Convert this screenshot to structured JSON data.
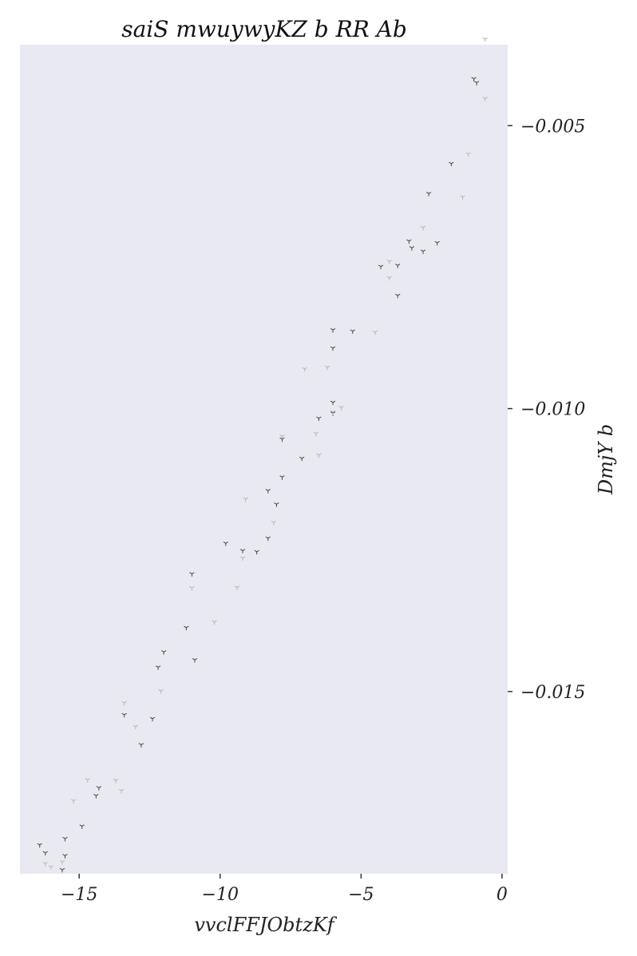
{
  "chart_data": {
    "type": "scatter",
    "title": "saiS mwuywyKZ b RR Ab",
    "xlabel": "vvclFFJObtzKf",
    "ylabel": "DmjY b",
    "xlim": [
      -17.1,
      0.2
    ],
    "ylim": [
      -0.01822,
      -0.00357
    ],
    "x_ticks": [
      -15,
      -10,
      -5,
      0
    ],
    "x_tick_labels": [
      "−15",
      "−10",
      "−5",
      "0"
    ],
    "y_ticks": [
      -0.005,
      -0.01,
      -0.015
    ],
    "y_tick_labels": [
      "−0.005",
      "−0.010",
      "−0.015"
    ],
    "y_axis_side": "right",
    "grid": false,
    "marker": "tri_down",
    "series": [
      {
        "color": "#444444",
        "points": [
          [
            -1.0,
            -0.00417
          ],
          [
            -0.9,
            -0.00424
          ],
          [
            -1.8,
            -0.00567
          ],
          [
            -2.6,
            -0.0062
          ],
          [
            -2.3,
            -0.00707
          ],
          [
            -2.8,
            -0.00722
          ],
          [
            -3.3,
            -0.00704
          ],
          [
            -3.2,
            -0.00716
          ],
          [
            -3.7,
            -0.00747
          ],
          [
            -4.3,
            -0.00749
          ],
          [
            -3.7,
            -0.008
          ],
          [
            -5.3,
            -0.00863
          ],
          [
            -6.0,
            -0.00861
          ],
          [
            -6.0,
            -0.00893
          ],
          [
            -6.0,
            -0.00989
          ],
          [
            -6.0,
            -0.01008
          ],
          [
            -6.5,
            -0.01017
          ],
          [
            -7.1,
            -0.01088
          ],
          [
            -7.8,
            -0.01054
          ],
          [
            -7.8,
            -0.01121
          ],
          [
            -8.3,
            -0.01145
          ],
          [
            -8.0,
            -0.01169
          ],
          [
            -8.3,
            -0.01229
          ],
          [
            -8.7,
            -0.01253
          ],
          [
            -9.2,
            -0.01251
          ],
          [
            -9.8,
            -0.01238
          ],
          [
            -11.0,
            -0.01292
          ],
          [
            -11.2,
            -0.01387
          ],
          [
            -10.9,
            -0.01444
          ],
          [
            -12.0,
            -0.0143
          ],
          [
            -12.2,
            -0.01457
          ],
          [
            -13.4,
            -0.01541
          ],
          [
            -12.4,
            -0.01548
          ],
          [
            -12.8,
            -0.01594
          ],
          [
            -14.3,
            -0.0167
          ],
          [
            -14.4,
            -0.01684
          ],
          [
            -14.9,
            -0.01738
          ],
          [
            -15.5,
            -0.0176
          ],
          [
            -16.4,
            -0.01771
          ],
          [
            -16.2,
            -0.01785
          ],
          [
            -15.5,
            -0.0179
          ],
          [
            -15.6,
            -0.01815
          ]
        ]
      },
      {
        "color": "#b4b4b4",
        "points": [
          [
            -0.6,
            -0.00347
          ],
          [
            -0.6,
            -0.00452
          ],
          [
            -1.2,
            -0.0055
          ],
          [
            -1.4,
            -0.00626
          ],
          [
            -2.8,
            -0.0068
          ],
          [
            -4.0,
            -0.0074
          ],
          [
            -4.0,
            -0.00769
          ],
          [
            -4.5,
            -0.00865
          ],
          [
            -6.2,
            -0.00927
          ],
          [
            -7.0,
            -0.0093
          ],
          [
            -5.7,
            -0.00998
          ],
          [
            -6.0,
            -0.01006
          ],
          [
            -6.6,
            -0.01044
          ],
          [
            -6.5,
            -0.01082
          ],
          [
            -7.8,
            -0.01049
          ],
          [
            -9.1,
            -0.0116
          ],
          [
            -8.1,
            -0.01201
          ],
          [
            -9.2,
            -0.01264
          ],
          [
            -11.0,
            -0.01317
          ],
          [
            -9.4,
            -0.01316
          ],
          [
            -10.2,
            -0.01377
          ],
          [
            -12.1,
            -0.01499
          ],
          [
            -13.4,
            -0.0152
          ],
          [
            -13.0,
            -0.01562
          ],
          [
            -14.7,
            -0.01656
          ],
          [
            -13.7,
            -0.01657
          ],
          [
            -13.5,
            -0.01675
          ],
          [
            -15.2,
            -0.01693
          ],
          [
            -16.2,
            -0.01804
          ],
          [
            -15.6,
            -0.01801
          ],
          [
            -16.0,
            -0.0181
          ]
        ]
      }
    ]
  }
}
